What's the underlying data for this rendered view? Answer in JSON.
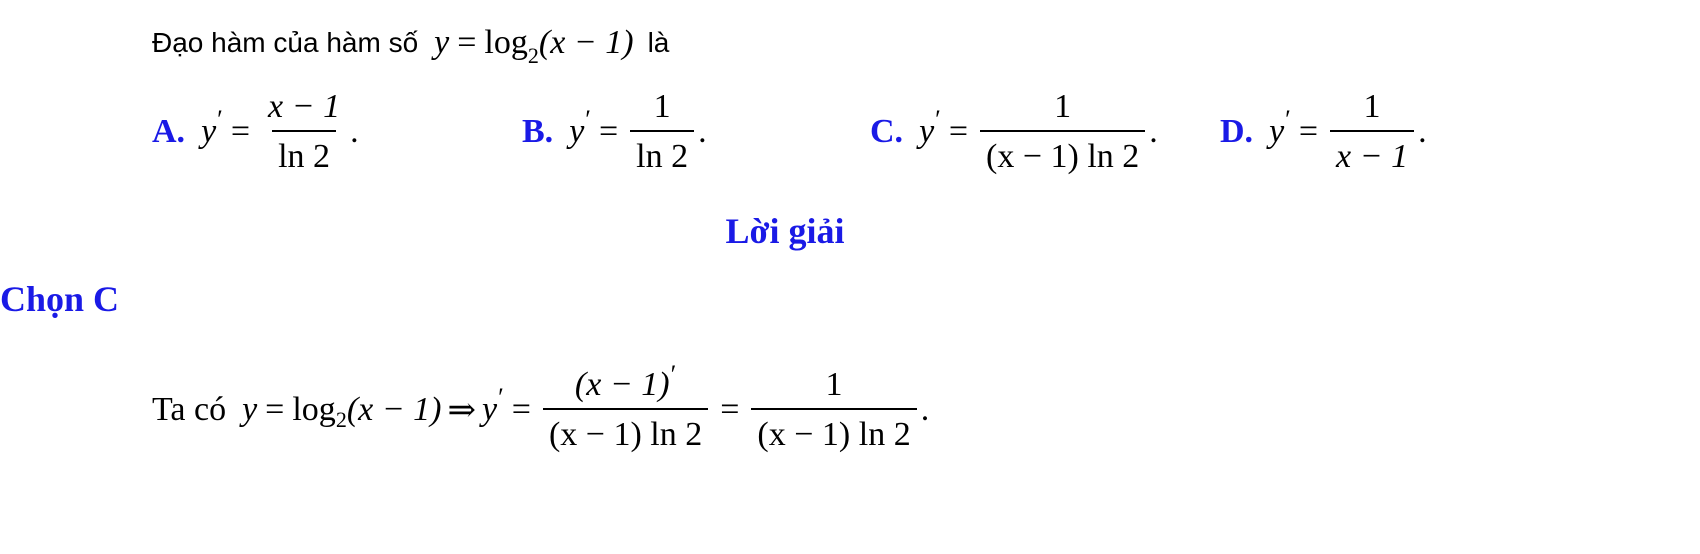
{
  "question": {
    "prefix": "Đạo hàm của hàm số",
    "suffix": "là",
    "func_y": "y",
    "func_eq": "=",
    "func_log": "log",
    "func_base": "2",
    "func_arg": "(x − 1)"
  },
  "options": [
    {
      "letter": "A.",
      "lhs": "y",
      "prime": "′",
      "eq": "=",
      "num": "x − 1",
      "den": "ln 2",
      "end": "."
    },
    {
      "letter": "B.",
      "lhs": "y",
      "prime": "′",
      "eq": "=",
      "num": "1",
      "den": "ln 2",
      "end": "."
    },
    {
      "letter": "C.",
      "lhs": "y",
      "prime": "′",
      "eq": "=",
      "num": "1",
      "den": "(x − 1) ln 2",
      "end": "."
    },
    {
      "letter": "D.",
      "lhs": "y",
      "prime": "′",
      "eq": "=",
      "num": "1",
      "den": "x − 1",
      "end": "."
    }
  ],
  "solution": {
    "heading": "Lời giải",
    "choice": "Chọn C",
    "intro": "Ta có",
    "y": "y",
    "eq": "=",
    "log": "log",
    "base": "2",
    "arg": "(x − 1)",
    "implies": "⇒",
    "yprime": "y",
    "prime": "′",
    "frac1_num": "(x − 1)",
    "frac1_num_prime": "′",
    "frac1_den": "(x − 1) ln 2",
    "frac2_num": "1",
    "frac2_den": "(x − 1) ln 2",
    "end": "."
  },
  "colors": {
    "accent": "#1a1ae6",
    "text": "#000000",
    "background": "#ffffff"
  }
}
